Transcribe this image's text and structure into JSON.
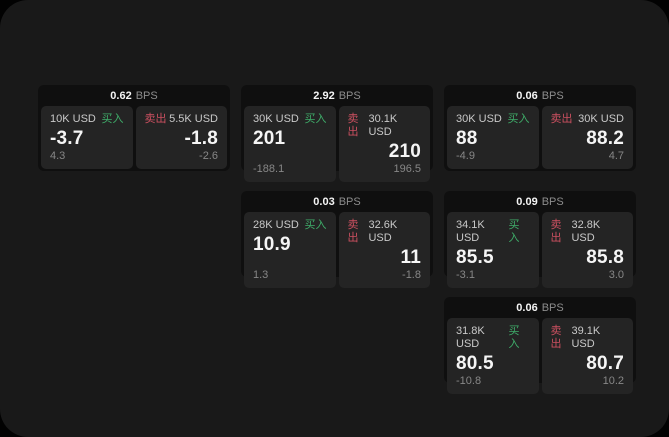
{
  "app": {
    "bps_suffix": "BPS",
    "buy_label": "买入",
    "sell_label": "卖出"
  },
  "colors": {
    "backdrop": "#020202",
    "page_background": "#191919",
    "card_background": "#0f0f0f",
    "tile_background": "#242424",
    "buy_green": "#3fae6a",
    "sell_red": "#cc5060",
    "text_primary": "#f5f5f5",
    "text_label": "#c9c9c9",
    "text_muted": "#878787"
  },
  "cards": [
    {
      "bps_value": "0.62",
      "buy": {
        "amount": "10K USD",
        "value": "-3.7",
        "delta": "4.3"
      },
      "sell": {
        "amount": "5.5K USD",
        "value": "-1.8",
        "delta": "-2.6"
      }
    },
    {
      "bps_value": "2.92",
      "buy": {
        "amount": "30K USD",
        "value": "201",
        "delta": "-188.1"
      },
      "sell": {
        "amount": "30.1K USD",
        "value": "210",
        "delta": "196.5"
      }
    },
    {
      "bps_value": "0.06",
      "buy": {
        "amount": "30K USD",
        "value": "88",
        "delta": "-4.9"
      },
      "sell": {
        "amount": "30K USD",
        "value": "88.2",
        "delta": "4.7"
      }
    },
    {
      "bps_value": "0.03",
      "buy": {
        "amount": "28K USD",
        "value": "10.9",
        "delta": "1.3"
      },
      "sell": {
        "amount": "32.6K USD",
        "value": "11",
        "delta": "-1.8"
      }
    },
    {
      "bps_value": "0.09",
      "buy": {
        "amount": "34.1K USD",
        "value": "85.5",
        "delta": "-3.1"
      },
      "sell": {
        "amount": "32.8K USD",
        "value": "85.8",
        "delta": "3.0"
      }
    },
    {
      "bps_value": "0.06",
      "buy": {
        "amount": "31.8K USD",
        "value": "80.5",
        "delta": "-10.8"
      },
      "sell": {
        "amount": "39.1K USD",
        "value": "80.7",
        "delta": "10.2"
      }
    }
  ]
}
